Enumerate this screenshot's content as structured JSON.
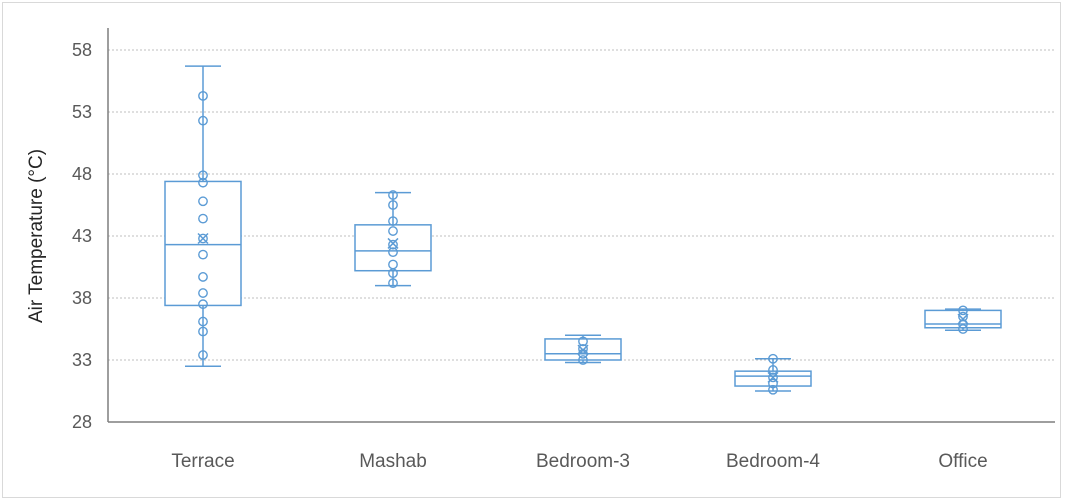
{
  "chart_data": {
    "type": "box",
    "title": "",
    "xlabel": "",
    "ylabel": "Air Temperature (°C)",
    "ylim": [
      28,
      58
    ],
    "yticks": [
      28,
      33,
      38,
      43,
      48,
      53,
      58
    ],
    "grid": true,
    "color": "#5b9bd5",
    "categories": [
      "Terrace",
      "Mashab",
      "Bedroom-3",
      "Bedroom-4",
      "Office"
    ],
    "boxes": [
      {
        "category": "Terrace",
        "min": 32.5,
        "q1": 37.4,
        "median": 42.3,
        "q3": 47.4,
        "max": 56.7,
        "mean": 42.8,
        "points": [
          33.4,
          35.3,
          36.1,
          37.5,
          38.4,
          39.7,
          41.5,
          42.8,
          44.4,
          45.8,
          47.3,
          47.9,
          52.3,
          54.3
        ]
      },
      {
        "category": "Mashab",
        "min": 39.0,
        "q1": 40.2,
        "median": 41.8,
        "q3": 43.9,
        "max": 46.5,
        "mean": 42.4,
        "points": [
          39.2,
          40.0,
          40.7,
          41.7,
          42.3,
          43.4,
          44.2,
          45.5,
          46.3
        ]
      },
      {
        "category": "Bedroom-3",
        "min": 32.8,
        "q1": 33.0,
        "median": 33.5,
        "q3": 34.7,
        "max": 35.0,
        "mean": 33.8,
        "points": [
          33.0,
          33.5,
          33.9,
          34.5
        ]
      },
      {
        "category": "Bedroom-4",
        "min": 30.5,
        "q1": 30.9,
        "median": 31.7,
        "q3": 32.1,
        "max": 33.1,
        "mean": 31.6,
        "points": [
          30.6,
          31.1,
          31.6,
          32.2,
          33.1
        ]
      },
      {
        "category": "Office",
        "min": 35.4,
        "q1": 35.6,
        "median": 35.9,
        "q3": 37.0,
        "max": 37.1,
        "mean": 36.3,
        "points": [
          35.5,
          35.9,
          36.5,
          37.0
        ]
      }
    ]
  }
}
